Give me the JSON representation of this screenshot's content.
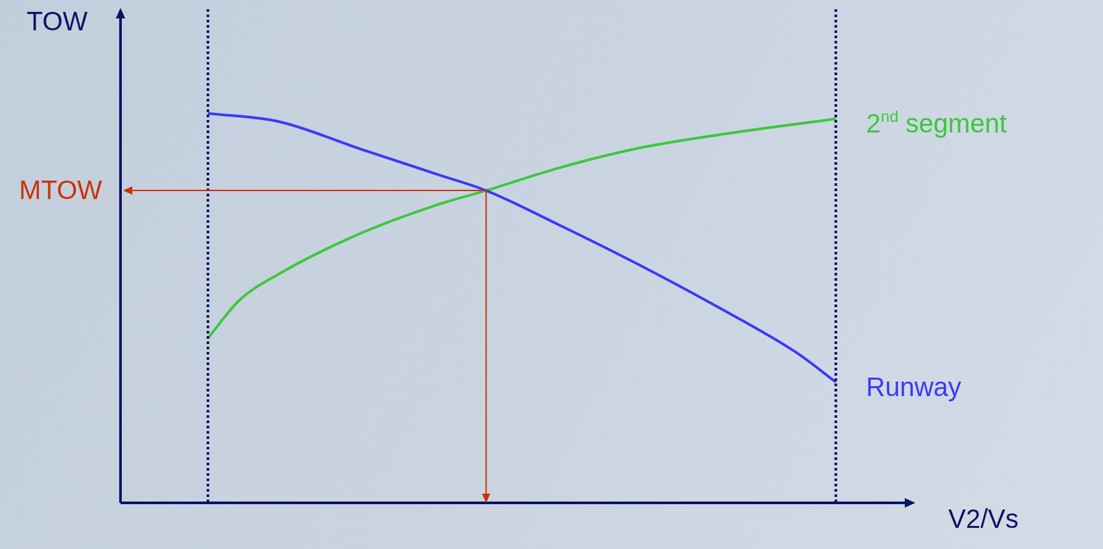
{
  "chart_data": {
    "type": "line",
    "x_label": "V2/Vs",
    "y_label": "TOW",
    "xlim": [
      0,
      100
    ],
    "ylim": [
      0,
      100
    ],
    "tick_labels": false,
    "grid": false,
    "vlines": [
      11,
      90
    ],
    "annotations": [
      {
        "text": "MTOW",
        "x": 46,
        "y": 63.1,
        "color": "#cc3300"
      }
    ],
    "series": [
      {
        "name": "Runway",
        "color": "#3a3af5",
        "x": [
          11,
          20,
          30,
          40,
          46,
          55,
          65,
          75,
          85,
          90
        ],
        "values": [
          78.7,
          77,
          71.6,
          66.3,
          63.1,
          56.3,
          48.3,
          39.7,
          30.4,
          24.4
        ]
      },
      {
        "name": "2nd segment",
        "color": "#3cc83c",
        "x": [
          11,
          15,
          20,
          30,
          40,
          46,
          55,
          65,
          75,
          90
        ],
        "values": [
          33.3,
          41,
          46.3,
          54.3,
          60.3,
          63.1,
          67.6,
          71.6,
          74.3,
          77.6
        ]
      }
    ]
  }
}
